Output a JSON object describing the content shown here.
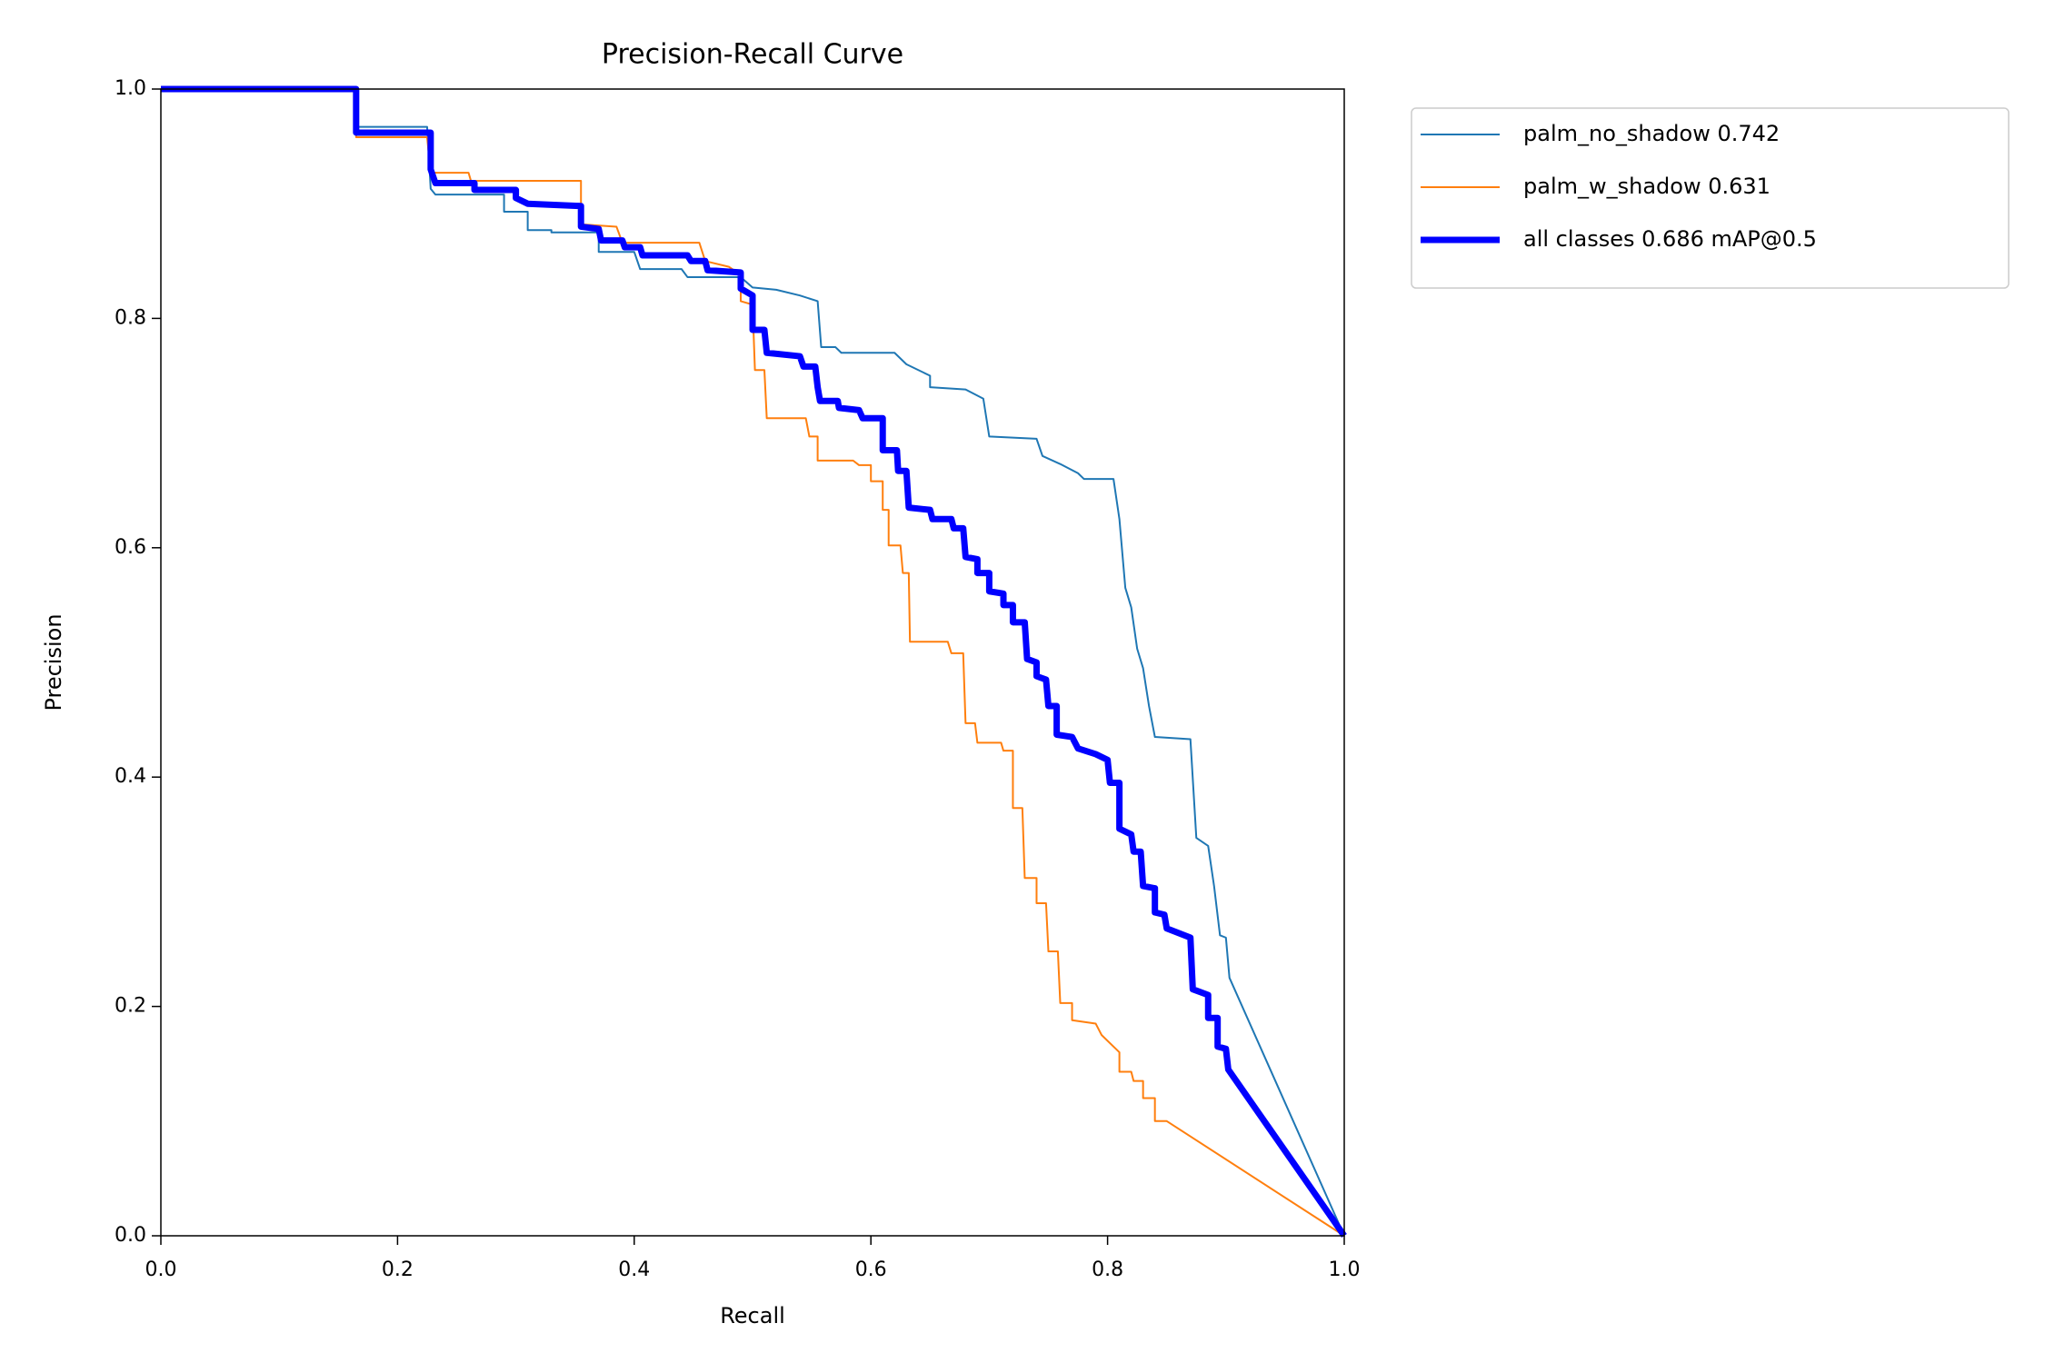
{
  "chart_data": {
    "type": "line",
    "title": "Precision-Recall Curve",
    "x_label": "Recall",
    "y_label": "Precision",
    "xlim": [
      0,
      1
    ],
    "ylim": [
      0,
      1
    ],
    "xticks": [
      {
        "value": 0,
        "label": "0.0"
      },
      0.2,
      0.4,
      0.6,
      0.8,
      {
        "value": 1,
        "label": "1.0"
      }
    ],
    "yticks": [
      {
        "value": 0,
        "label": "0.0"
      },
      0.2,
      0.4,
      0.6,
      0.8,
      {
        "value": 1,
        "label": "1.0"
      }
    ],
    "grid": false,
    "legend": "outside-upper-right",
    "series": [
      {
        "name": "palm_no_shadow 0.742",
        "color": "#1f77b4",
        "linewidth": 2,
        "x": [
          0,
          0.165,
          0.165,
          0.225,
          0.228,
          0.232,
          0.29,
          0.29,
          0.31,
          0.31,
          0.33,
          0.33,
          0.37,
          0.37,
          0.4,
          0.405,
          0.44,
          0.445,
          0.49,
          0.5,
          0.52,
          0.54,
          0.555,
          0.558,
          0.57,
          0.575,
          0.62,
          0.63,
          0.65,
          0.65,
          0.68,
          0.695,
          0.7,
          0.74,
          0.745,
          0.76,
          0.775,
          0.78,
          0.805,
          0.81,
          0.815,
          0.82,
          0.825,
          0.83,
          0.835,
          0.84,
          0.87,
          0.875,
          0.885,
          0.89,
          0.895,
          0.9,
          0.903,
          1.0
        ],
        "values": [
          1,
          1,
          0.967,
          0.967,
          0.913,
          0.908,
          0.908,
          0.893,
          0.893,
          0.877,
          0.877,
          0.875,
          0.875,
          0.858,
          0.858,
          0.843,
          0.843,
          0.836,
          0.836,
          0.827,
          0.825,
          0.82,
          0.815,
          0.775,
          0.775,
          0.77,
          0.77,
          0.76,
          0.75,
          0.74,
          0.738,
          0.73,
          0.697,
          0.695,
          0.68,
          0.673,
          0.665,
          0.66,
          0.66,
          0.625,
          0.565,
          0.548,
          0.512,
          0.495,
          0.462,
          0.435,
          0.433,
          0.347,
          0.34,
          0.305,
          0.262,
          0.26,
          0.225,
          0
        ]
      },
      {
        "name": "palm_w_shadow 0.631",
        "color": "#ff7f0e",
        "linewidth": 2,
        "x": [
          0,
          0.165,
          0.165,
          0.225,
          0.228,
          0.26,
          0.262,
          0.355,
          0.355,
          0.385,
          0.39,
          0.455,
          0.46,
          0.48,
          0.49,
          0.49,
          0.5,
          0.502,
          0.51,
          0.512,
          0.545,
          0.548,
          0.555,
          0.555,
          0.585,
          0.59,
          0.6,
          0.6,
          0.61,
          0.61,
          0.615,
          0.615,
          0.625,
          0.627,
          0.632,
          0.633,
          0.665,
          0.668,
          0.678,
          0.68,
          0.688,
          0.69,
          0.71,
          0.712,
          0.72,
          0.72,
          0.728,
          0.73,
          0.74,
          0.74,
          0.748,
          0.75,
          0.758,
          0.76,
          0.77,
          0.77,
          0.79,
          0.795,
          0.81,
          0.81,
          0.82,
          0.822,
          0.83,
          0.83,
          0.84,
          0.84,
          0.85,
          1.0
        ],
        "values": [
          1,
          1,
          0.958,
          0.958,
          0.927,
          0.927,
          0.92,
          0.92,
          0.882,
          0.88,
          0.866,
          0.866,
          0.85,
          0.845,
          0.838,
          0.815,
          0.812,
          0.755,
          0.755,
          0.713,
          0.713,
          0.697,
          0.697,
          0.676,
          0.676,
          0.672,
          0.672,
          0.658,
          0.658,
          0.633,
          0.633,
          0.602,
          0.602,
          0.578,
          0.578,
          0.518,
          0.518,
          0.508,
          0.508,
          0.447,
          0.447,
          0.43,
          0.43,
          0.423,
          0.423,
          0.373,
          0.373,
          0.312,
          0.312,
          0.29,
          0.29,
          0.248,
          0.248,
          0.203,
          0.203,
          0.188,
          0.185,
          0.175,
          0.16,
          0.143,
          0.143,
          0.135,
          0.135,
          0.12,
          0.12,
          0.1,
          0.1,
          0
        ]
      },
      {
        "name": "all classes 0.686 mAP@0.5",
        "color": "#0000ff",
        "linewidth": 7,
        "x": [
          0,
          0.165,
          0.165,
          0.228,
          0.228,
          0.232,
          0.265,
          0.265,
          0.3,
          0.3,
          0.31,
          0.355,
          0.355,
          0.37,
          0.372,
          0.39,
          0.392,
          0.405,
          0.407,
          0.445,
          0.448,
          0.46,
          0.462,
          0.49,
          0.49,
          0.5,
          0.5,
          0.51,
          0.512,
          0.54,
          0.543,
          0.553,
          0.555,
          0.557,
          0.572,
          0.573,
          0.59,
          0.593,
          0.61,
          0.61,
          0.622,
          0.623,
          0.63,
          0.632,
          0.65,
          0.652,
          0.668,
          0.67,
          0.678,
          0.68,
          0.69,
          0.69,
          0.7,
          0.7,
          0.712,
          0.712,
          0.72,
          0.72,
          0.73,
          0.732,
          0.74,
          0.74,
          0.748,
          0.75,
          0.757,
          0.757,
          0.77,
          0.775,
          0.79,
          0.8,
          0.802,
          0.81,
          0.81,
          0.82,
          0.822,
          0.828,
          0.83,
          0.84,
          0.84,
          0.848,
          0.85,
          0.87,
          0.872,
          0.885,
          0.885,
          0.893,
          0.893,
          0.9,
          0.902,
          1.0
        ],
        "values": [
          1,
          1,
          0.962,
          0.962,
          0.93,
          0.918,
          0.918,
          0.912,
          0.912,
          0.905,
          0.9,
          0.898,
          0.88,
          0.878,
          0.868,
          0.868,
          0.862,
          0.862,
          0.855,
          0.855,
          0.85,
          0.85,
          0.842,
          0.84,
          0.826,
          0.82,
          0.79,
          0.79,
          0.77,
          0.767,
          0.758,
          0.758,
          0.74,
          0.728,
          0.728,
          0.722,
          0.72,
          0.713,
          0.713,
          0.685,
          0.685,
          0.667,
          0.667,
          0.635,
          0.633,
          0.625,
          0.625,
          0.617,
          0.617,
          0.592,
          0.59,
          0.578,
          0.578,
          0.562,
          0.56,
          0.55,
          0.55,
          0.535,
          0.535,
          0.503,
          0.5,
          0.488,
          0.485,
          0.462,
          0.462,
          0.437,
          0.435,
          0.425,
          0.42,
          0.415,
          0.395,
          0.395,
          0.355,
          0.35,
          0.335,
          0.335,
          0.305,
          0.303,
          0.282,
          0.28,
          0.268,
          0.26,
          0.215,
          0.21,
          0.19,
          0.19,
          0.165,
          0.163,
          0.145,
          0
        ]
      }
    ]
  }
}
